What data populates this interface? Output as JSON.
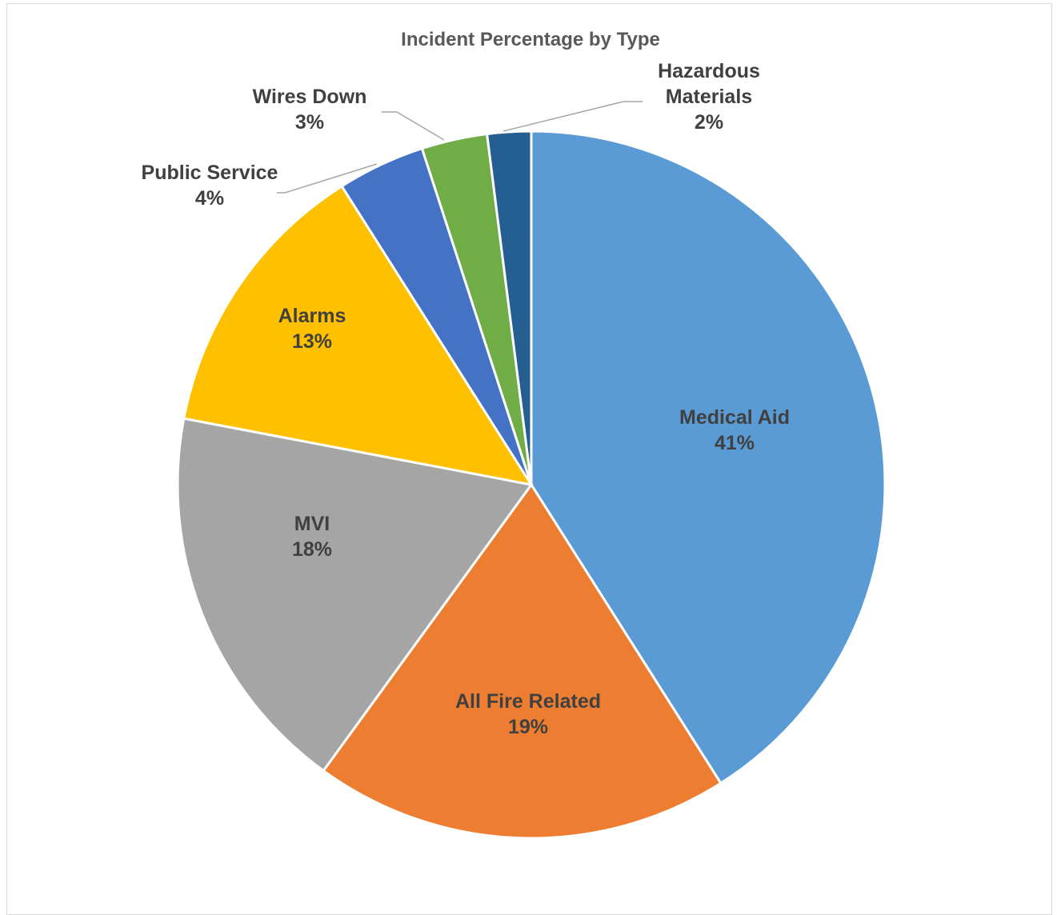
{
  "chart_data": {
    "type": "pie",
    "title": "Incident Percentage by Type",
    "slices": [
      {
        "label": "Medical Aid",
        "label_lines": [
          "Medical Aid"
        ],
        "percent_label": "41%",
        "value": 41,
        "color": "#5b9bd5"
      },
      {
        "label": "All Fire Related",
        "label_lines": [
          "All Fire Related"
        ],
        "percent_label": "19%",
        "value": 19,
        "color": "#ed7d31"
      },
      {
        "label": "MVI",
        "label_lines": [
          "MVI"
        ],
        "percent_label": "18%",
        "value": 18,
        "color": "#a5a5a5"
      },
      {
        "label": "Alarms",
        "label_lines": [
          "Alarms"
        ],
        "percent_label": "13%",
        "value": 13,
        "color": "#ffc000"
      },
      {
        "label": "Public Service",
        "label_lines": [
          "Public Service"
        ],
        "percent_label": "4%",
        "value": 4,
        "color": "#4472c4"
      },
      {
        "label": "Wires Down",
        "label_lines": [
          "Wires Down"
        ],
        "percent_label": "3%",
        "value": 3,
        "color": "#70ad47"
      },
      {
        "label": "Hazardous Materials",
        "label_lines": [
          "Hazardous",
          "Materials"
        ],
        "percent_label": "2%",
        "value": 2,
        "color": "#255e91"
      }
    ],
    "start_angle": "12 o'clock",
    "direction": "clockwise",
    "legend": "none"
  }
}
